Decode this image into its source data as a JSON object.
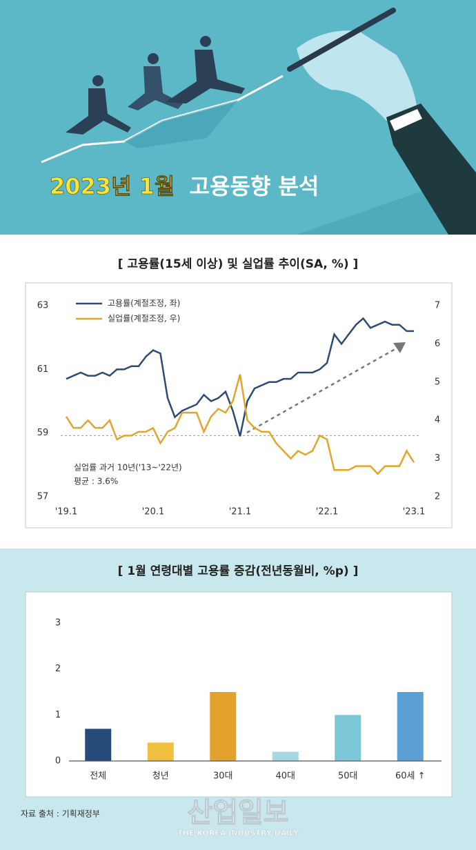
{
  "header": {
    "title_highlight": "2023년 1월",
    "title": "고용동향 분석"
  },
  "chart_data": [
    {
      "type": "line",
      "title": "[ 고용률(15세 이상) 및 실업률 추이(SA, %) ]",
      "categories": [
        "'19.1",
        null,
        null,
        null,
        null,
        null,
        null,
        null,
        null,
        null,
        null,
        null,
        "'20.1",
        null,
        null,
        null,
        null,
        null,
        null,
        null,
        null,
        null,
        null,
        null,
        "'21.1",
        null,
        null,
        null,
        null,
        null,
        null,
        null,
        null,
        null,
        null,
        null,
        "'22.1",
        null,
        null,
        null,
        null,
        null,
        null,
        null,
        null,
        null,
        null,
        null,
        "'23.1"
      ],
      "series": [
        {
          "name": "고용률(계절조정, 좌)",
          "color": "#2b4a78",
          "values": [
            60.7,
            60.8,
            60.9,
            60.8,
            60.8,
            60.9,
            60.8,
            61.0,
            61.0,
            61.1,
            61.1,
            61.4,
            61.6,
            61.5,
            60.1,
            59.5,
            59.7,
            59.8,
            59.9,
            60.2,
            60.0,
            60.1,
            60.3,
            59.7,
            58.9,
            60.0,
            60.4,
            60.5,
            60.6,
            60.6,
            60.7,
            60.7,
            60.9,
            60.9,
            60.9,
            61.0,
            61.2,
            62.1,
            61.8,
            62.1,
            62.4,
            62.6,
            62.3,
            62.4,
            62.5,
            62.4,
            62.4,
            62.2,
            62.2
          ]
        },
        {
          "name": "실업률(계절조정, 우)",
          "color": "#e2a52a",
          "axis": "y2",
          "values": [
            4.1,
            3.8,
            3.8,
            4.0,
            3.8,
            3.8,
            4.0,
            3.5,
            3.6,
            3.6,
            3.7,
            3.7,
            3.8,
            3.4,
            3.7,
            3.8,
            4.2,
            4.2,
            4.2,
            3.7,
            4.1,
            4.3,
            4.2,
            4.5,
            5.2,
            4.0,
            3.8,
            3.7,
            3.7,
            3.4,
            3.2,
            3.0,
            3.2,
            3.1,
            3.2,
            3.6,
            3.5,
            2.7,
            2.7,
            2.7,
            2.8,
            2.8,
            2.8,
            2.6,
            2.8,
            2.8,
            2.8,
            3.2,
            2.9
          ]
        }
      ],
      "ylim": [
        57,
        63
      ],
      "yticks": [
        57,
        59,
        61,
        63
      ],
      "y2lim": [
        2,
        7
      ],
      "y2ticks": [
        2,
        3,
        4,
        5,
        6,
        7
      ],
      "reference_line_y2": 3.6,
      "annotations": [
        "실업률 과거 10년('13~'22년)",
        "평균 : 3.6%"
      ],
      "legend": "top-left"
    },
    {
      "type": "bar",
      "title": "[ 1월 연령대별 고용률 증감(전년동월비, %p) ]",
      "categories": [
        "전체",
        "청년",
        "30대",
        "40대",
        "50대",
        "60세 ↑"
      ],
      "values": [
        0.7,
        0.4,
        1.5,
        0.2,
        1.0,
        1.5
      ],
      "colors": [
        "#264a7a",
        "#f0bf3e",
        "#e3a22b",
        "#a6d7e3",
        "#7cc7d7",
        "#5ba0d5"
      ],
      "ylim": [
        0,
        3
      ],
      "yticks": [
        0,
        1,
        2,
        3
      ],
      "grid": false
    }
  ],
  "source": "자료 출처 : 기획재정부",
  "watermark": {
    "title": "산업일보",
    "subtitle": "THE KOREA INDUSTRY DAILY"
  }
}
